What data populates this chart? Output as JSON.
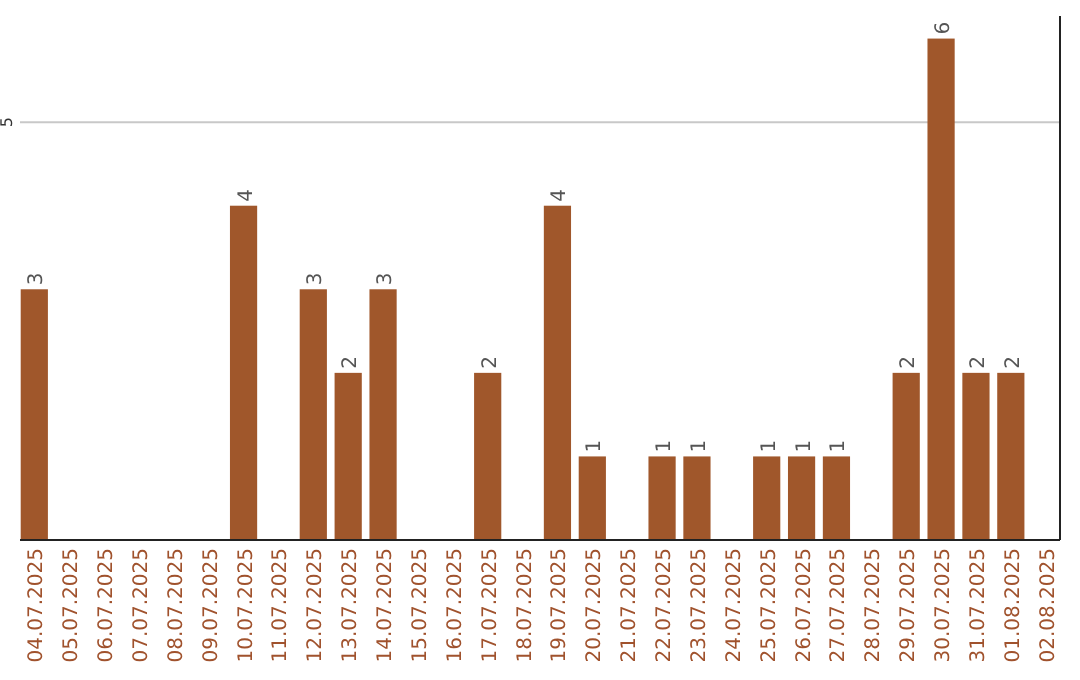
{
  "chart_data": {
    "type": "bar",
    "categories": [
      "04.07.2025",
      "05.07.2025",
      "06.07.2025",
      "07.07.2025",
      "08.07.2025",
      "09.07.2025",
      "10.07.2025",
      "11.07.2025",
      "12.07.2025",
      "13.07.2025",
      "14.07.2025",
      "15.07.2025",
      "16.07.2025",
      "17.07.2025",
      "18.07.2025",
      "19.07.2025",
      "20.07.2025",
      "21.07.2025",
      "22.07.2025",
      "23.07.2025",
      "24.07.2025",
      "25.07.2025",
      "26.07.2025",
      "27.07.2025",
      "28.07.2025",
      "29.07.2025",
      "30.07.2025",
      "31.07.2025",
      "01.08.2025",
      "02.08.2025"
    ],
    "values": [
      3,
      0,
      0,
      0,
      0,
      0,
      4,
      0,
      3,
      2,
      3,
      0,
      0,
      2,
      0,
      4,
      1,
      0,
      1,
      1,
      0,
      1,
      1,
      1,
      0,
      2,
      6,
      2,
      2,
      0
    ],
    "value_labels": [
      "3",
      null,
      null,
      null,
      null,
      null,
      "4",
      null,
      "3",
      "2",
      "3",
      null,
      null,
      "2",
      null,
      "4",
      "1",
      null,
      "1",
      "1",
      null,
      "1",
      "1",
      "1",
      null,
      "2",
      "6",
      "2",
      "2",
      null
    ],
    "color": "#a0572b",
    "ylim": [
      0,
      6.27
    ],
    "yticks": [
      5
    ],
    "grid": "y"
  }
}
